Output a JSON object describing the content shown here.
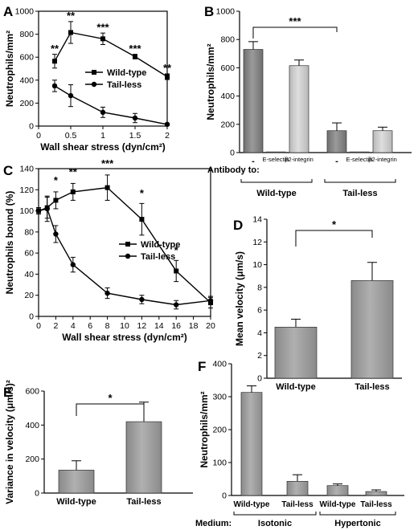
{
  "chart_data": [
    {
      "id": "A",
      "type": "line",
      "panel_label": "A",
      "xlabel": "Wall shear stress (dyn/cm²)",
      "ylabel": "Neutrophils/mm²",
      "xlim": [
        0,
        2
      ],
      "ylim": [
        0,
        1000
      ],
      "xticks": [
        0,
        0.5,
        1,
        1.5,
        2
      ],
      "xtick_labels": [
        "0",
        "0.5",
        "1",
        "1.5",
        "2"
      ],
      "yticks": [
        0,
        200,
        400,
        600,
        800,
        1000
      ],
      "series": [
        {
          "name": "Wild-type",
          "marker": "square",
          "x": [
            0.25,
            0.5,
            1,
            1.5,
            2
          ],
          "y": [
            565,
            815,
            760,
            605,
            430
          ],
          "err": [
            60,
            95,
            50,
            20,
            25
          ]
        },
        {
          "name": "Tail-less",
          "marker": "circle",
          "x": [
            0.25,
            0.5,
            1,
            1.5,
            2
          ],
          "y": [
            350,
            265,
            120,
            70,
            15
          ],
          "err": [
            50,
            95,
            45,
            40,
            10
          ]
        }
      ],
      "annotations": [
        {
          "x": 0.25,
          "y": 630,
          "text": "**"
        },
        {
          "x": 0.5,
          "y": 915,
          "text": "**"
        },
        {
          "x": 1,
          "y": 815,
          "text": "***"
        },
        {
          "x": 1.5,
          "y": 630,
          "text": "***"
        },
        {
          "x": 2,
          "y": 460,
          "text": "**"
        }
      ],
      "legend_position": "right"
    },
    {
      "id": "B",
      "type": "bar",
      "panel_label": "B",
      "ylabel": "Neutrophils/mm²",
      "ylim": [
        0,
        1000
      ],
      "yticks": [
        0,
        200,
        400,
        600,
        800,
        1000
      ],
      "axis_caption": "Antibody to:",
      "categories": [
        "-",
        "E-selectin",
        "β2-integrin",
        "-",
        "E-selectin",
        "β2-integrin"
      ],
      "values": [
        730,
        5,
        615,
        155,
        5,
        155
      ],
      "errors": [
        55,
        0,
        40,
        55,
        0,
        25
      ],
      "groups": [
        "Wild-type",
        "Tail-less"
      ],
      "significance": [
        {
          "from": 0,
          "to": 3,
          "text": "***"
        }
      ]
    },
    {
      "id": "C",
      "type": "line",
      "panel_label": "C",
      "xlabel": "Wall shear stress (dyn/cm²)",
      "ylabel": "Neutrophils bound (%)",
      "xlim": [
        0,
        20
      ],
      "ylim": [
        0,
        140
      ],
      "xticks": [
        0,
        2,
        4,
        6,
        8,
        10,
        12,
        14,
        16,
        18,
        20
      ],
      "yticks": [
        0,
        20,
        40,
        60,
        80,
        100,
        120,
        140
      ],
      "series": [
        {
          "name": "Wild-type",
          "marker": "square",
          "x": [
            0,
            1,
            2,
            4,
            8,
            12,
            16,
            20
          ],
          "y": [
            100,
            103,
            110,
            118,
            122,
            92,
            43,
            13
          ],
          "err": [
            3,
            10,
            8,
            8,
            12,
            15,
            10,
            5
          ]
        },
        {
          "name": "Tail-less",
          "marker": "circle",
          "x": [
            0,
            1,
            2,
            4,
            8,
            12,
            16,
            20
          ],
          "y": [
            100,
            102,
            78,
            49,
            22,
            16,
            11,
            15
          ],
          "err": [
            3,
            12,
            8,
            7,
            5,
            4,
            4,
            4
          ]
        }
      ],
      "annotations": [
        {
          "x": 2,
          "y": 124,
          "text": "*"
        },
        {
          "x": 4,
          "y": 132,
          "text": "**"
        },
        {
          "x": 8,
          "y": 140,
          "text": "***"
        },
        {
          "x": 12,
          "y": 112,
          "text": "*"
        },
        {
          "x": 16,
          "y": 58,
          "text": "*"
        }
      ],
      "legend_position": "center-right"
    },
    {
      "id": "D",
      "type": "bar",
      "panel_label": "D",
      "ylabel": "Mean velocity (μm/s)",
      "ylim": [
        0,
        14
      ],
      "yticks": [
        0,
        2,
        4,
        6,
        8,
        10,
        12,
        14
      ],
      "categories": [
        "Wild-type",
        "Tail-less"
      ],
      "values": [
        4.5,
        8.6
      ],
      "errors": [
        0.7,
        1.6
      ],
      "significance": [
        {
          "from": 0,
          "to": 1,
          "text": "*"
        }
      ]
    },
    {
      "id": "E",
      "type": "bar",
      "panel_label": "E",
      "ylabel": "Variance in velocity (μm/s)²",
      "ylim": [
        0,
        600
      ],
      "yticks": [
        0,
        200,
        400,
        600
      ],
      "categories": [
        "Wild-type",
        "Tail-less"
      ],
      "values": [
        135,
        420
      ],
      "errors": [
        55,
        115
      ],
      "significance": [
        {
          "from": 0,
          "to": 1,
          "text": "*"
        }
      ]
    },
    {
      "id": "F",
      "type": "bar",
      "panel_label": "F",
      "ylabel": "Neutrophils/mm²",
      "ylim": [
        0,
        400
      ],
      "yticks": [
        0,
        100,
        200,
        300,
        400
      ],
      "axis_caption": "Medium:",
      "categories": [
        "Wild-type",
        "Tail-less",
        "Wild-type",
        "Tail-less"
      ],
      "values": [
        313,
        43,
        30,
        12
      ],
      "errors": [
        20,
        20,
        5,
        5
      ],
      "groups": [
        "Isotonic",
        "Hypertonic"
      ]
    }
  ]
}
